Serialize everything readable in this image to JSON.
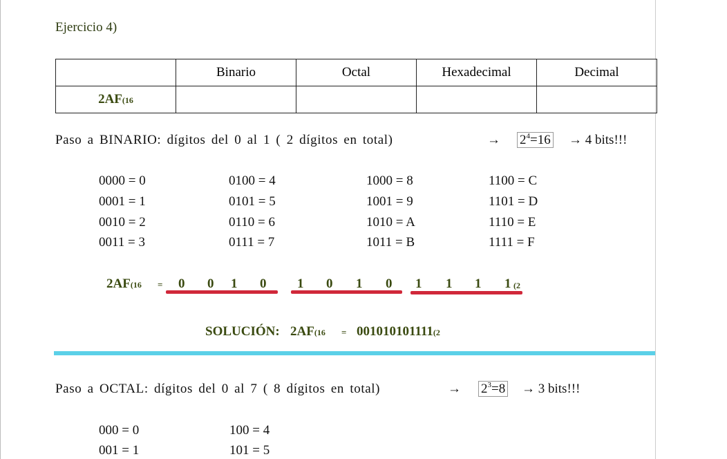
{
  "title": "Ejercicio 4)",
  "table": {
    "header": [
      "Binario",
      "Octal",
      "Hexadecimal",
      "Decimal"
    ],
    "row": {
      "number": "2AF",
      "base": "(16"
    }
  },
  "binary": {
    "heading": "Paso a BINARIO: dígitos del 0 al 1 ( 2 dígitos en total)",
    "arrow": "→",
    "formula": {
      "base": "2",
      "exponent": "4",
      "result": "=16"
    },
    "bits": "→ 4 bits!!!",
    "mapping": [
      "0000 = 0",
      "0001 = 1",
      "0010 = 2",
      "0011 = 3",
      "0100 = 4",
      "0101 = 5",
      "0110 = 6",
      "0111 = 7",
      "1000 = 8",
      "1001 = 9",
      "1010 = A",
      "1011 = B",
      "1100 = C",
      "1101 = D",
      "1110 = E",
      "1111 = F"
    ],
    "conversion": {
      "number": "2AF",
      "base": "(16",
      "equals": "=",
      "digits": [
        "0",
        "0",
        "1",
        "0",
        "1",
        "0",
        "1",
        "0",
        "1",
        "1",
        "1",
        "1"
      ],
      "result_base": "(2"
    },
    "solution": {
      "label": "SOLUCIÓN:",
      "number": "2AF",
      "base": "(16",
      "equals": "=",
      "result": "001010101111",
      "result_base": "(2"
    }
  },
  "octal": {
    "heading": "Paso a OCTAL: dígitos del 0 al 7 ( 8 dígitos en total)",
    "arrow": "→",
    "formula": {
      "base": "2",
      "exponent": "3",
      "result": "=8"
    },
    "bits": "→ 3 bits!!!",
    "mapping": [
      "000 = 0",
      "001 = 1",
      "100 = 4",
      "101 = 5"
    ]
  }
}
